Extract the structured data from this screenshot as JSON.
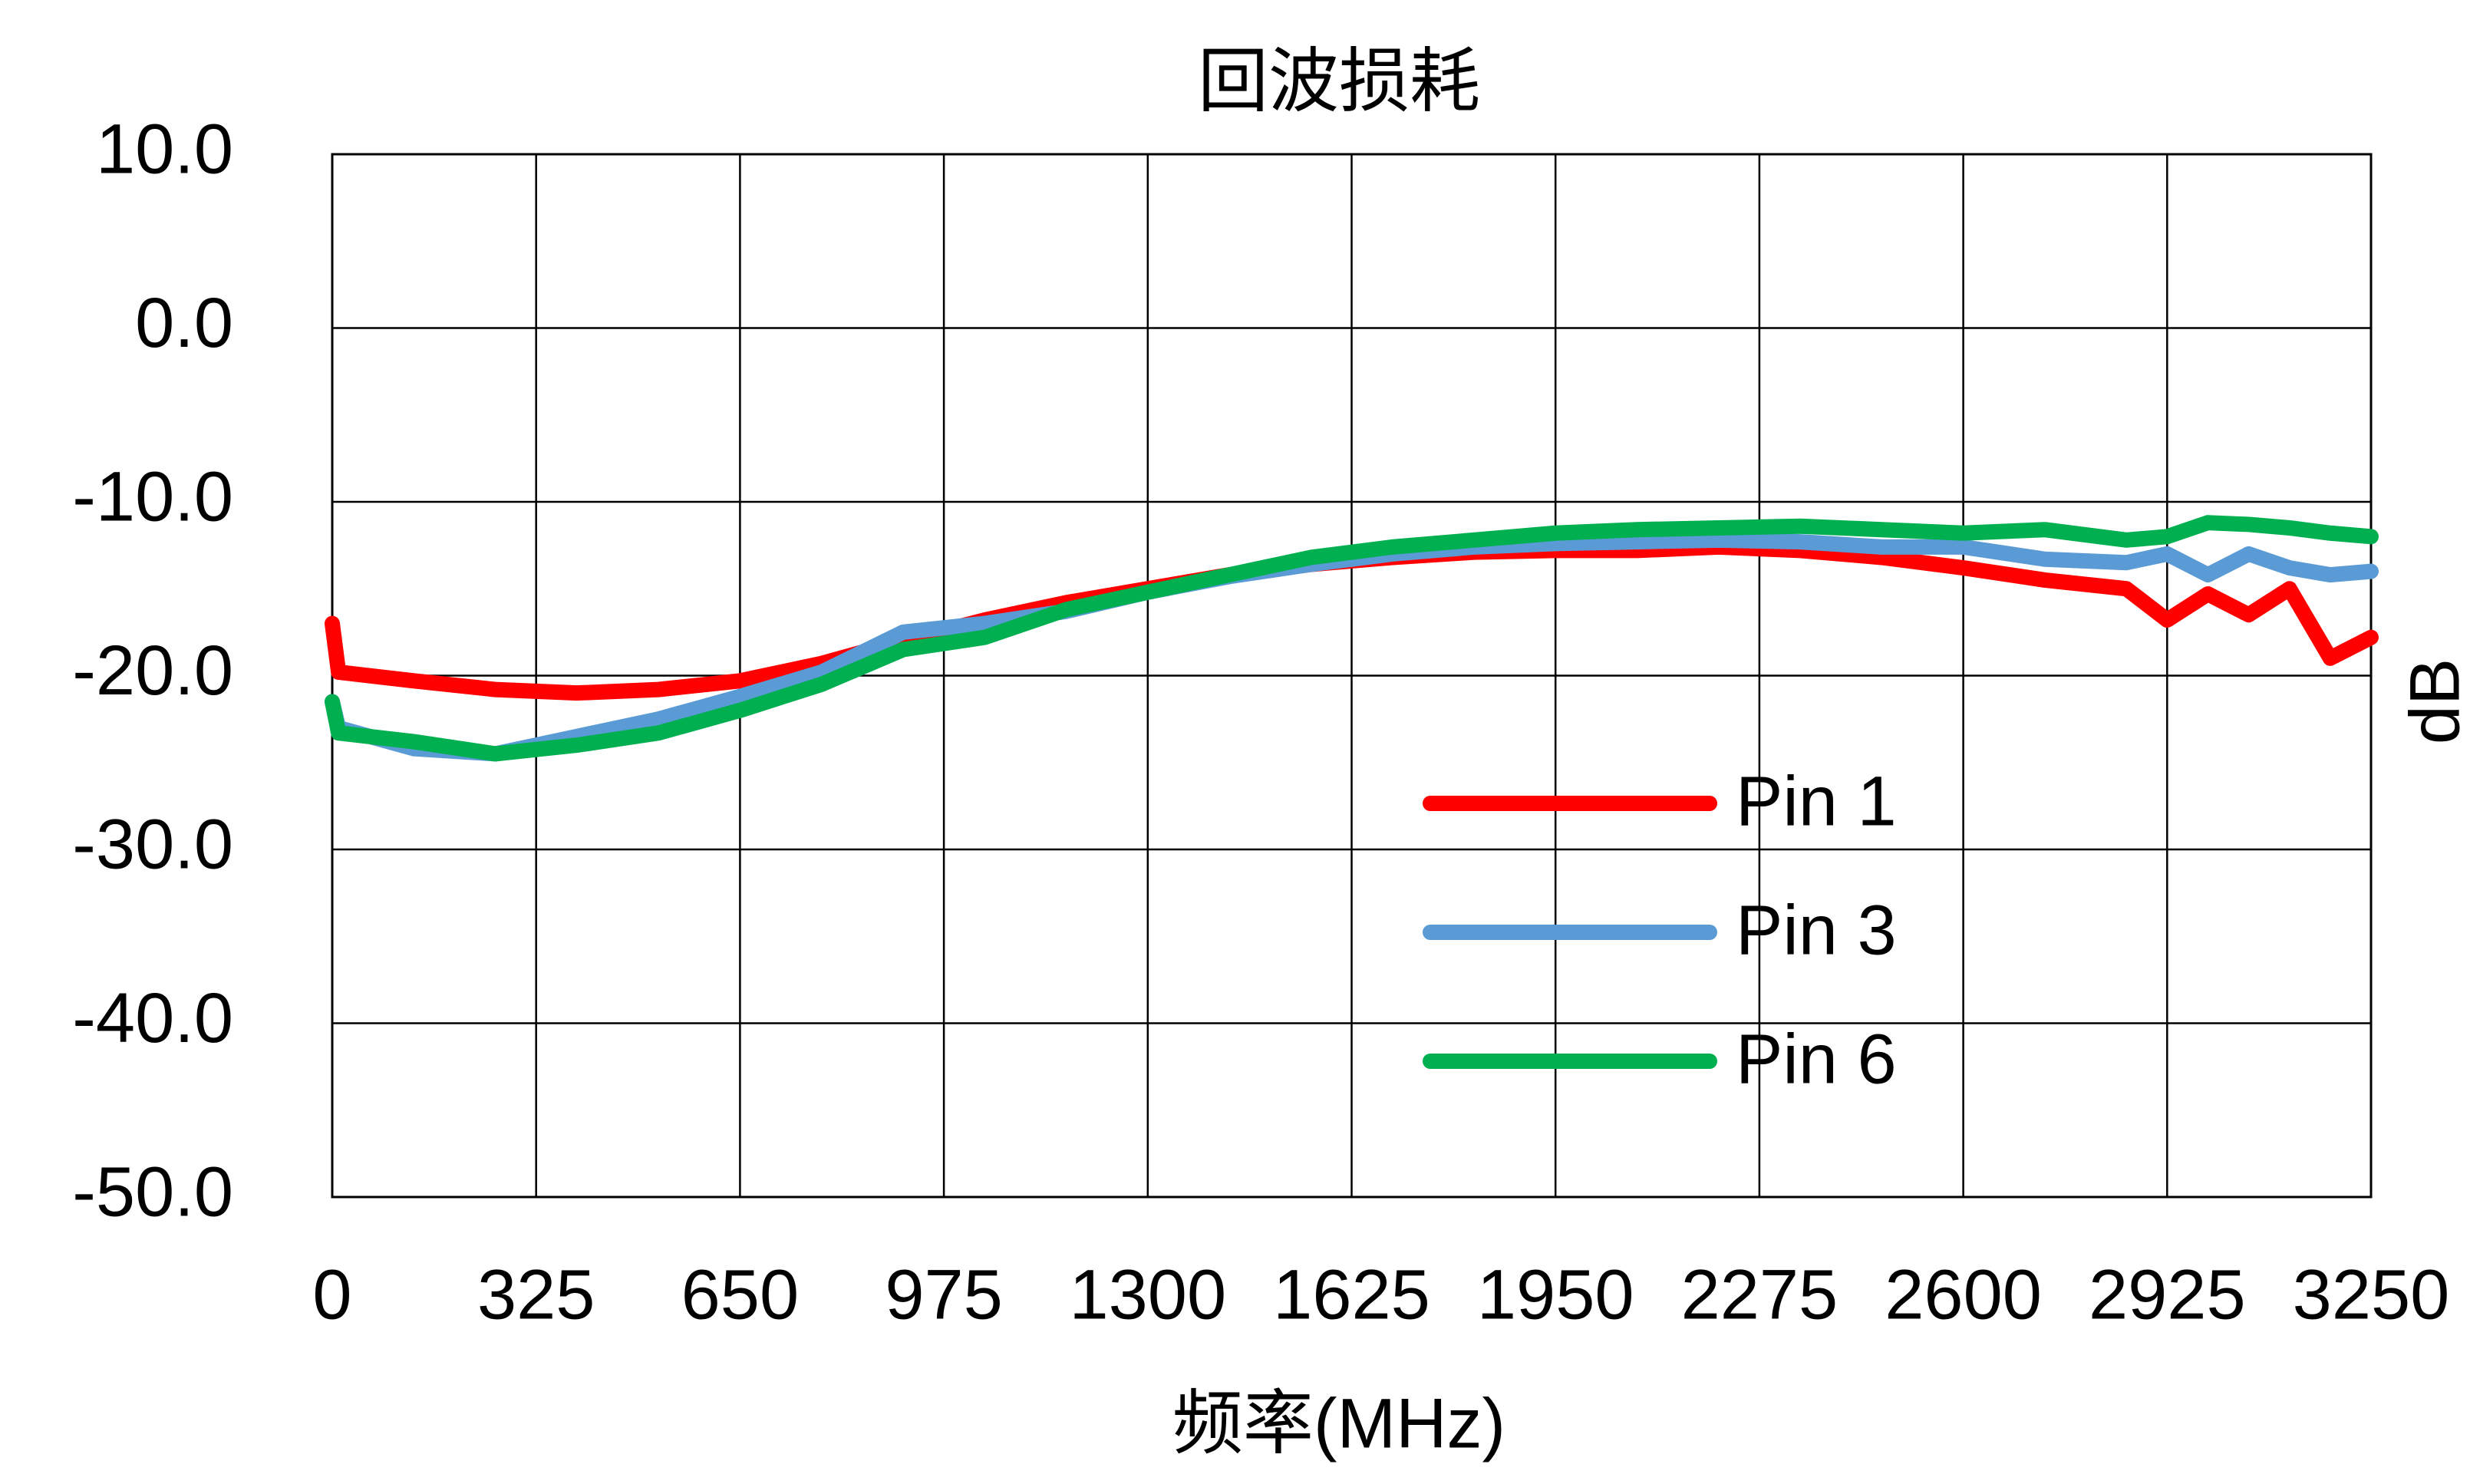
{
  "chart_data": {
    "type": "line",
    "title": "回波损耗",
    "x_label": "频率(MHz)",
    "y_label": "dB",
    "x": [
      0,
      10,
      130,
      260,
      390,
      520,
      650,
      780,
      910,
      1040,
      1170,
      1300,
      1430,
      1560,
      1690,
      1820,
      1950,
      2080,
      2210,
      2340,
      2470,
      2600,
      2730,
      2860,
      2925,
      2990,
      3055,
      3120,
      3185,
      3250
    ],
    "series": [
      {
        "name": "Pin 1",
        "color": "#ff0000",
        "values": [
          -17,
          -19.8,
          -20.3,
          -20.8,
          -21.0,
          -20.8,
          -20.3,
          -19.3,
          -18.0,
          -16.8,
          -15.8,
          -15.0,
          -14.2,
          -13.6,
          -13.2,
          -12.9,
          -12.8,
          -12.8,
          -12.6,
          -12.8,
          -13.2,
          -13.8,
          -14.5,
          -15.0,
          -16.8,
          -15.3,
          -16.5,
          -15.0,
          -19.0,
          -17.8
        ]
      },
      {
        "name": "Pin 3",
        "color": "#5b9bd5",
        "values": [
          -21.5,
          -23.0,
          -24.2,
          -24.5,
          -23.5,
          -22.5,
          -21.2,
          -19.8,
          -17.5,
          -17.0,
          -16.3,
          -15.2,
          -14.3,
          -13.6,
          -13.0,
          -12.6,
          -12.4,
          -12.3,
          -12.2,
          -12.3,
          -12.6,
          -12.6,
          -13.3,
          -13.5,
          -13.0,
          -14.2,
          -13.0,
          -13.8,
          -14.2,
          -14.0
        ]
      },
      {
        "name": "Pin 6",
        "color": "#00b050",
        "values": [
          -21.5,
          -23.3,
          -23.8,
          -24.5,
          -24.0,
          -23.3,
          -22.0,
          -20.5,
          -18.5,
          -17.8,
          -16.2,
          -15.2,
          -14.2,
          -13.2,
          -12.6,
          -12.2,
          -11.8,
          -11.6,
          -11.5,
          -11.4,
          -11.6,
          -11.8,
          -11.6,
          -12.2,
          -12.0,
          -11.2,
          -11.3,
          -11.5,
          -11.8,
          -12.0
        ]
      }
    ],
    "xlim": [
      0,
      3250
    ],
    "xticks": [
      0,
      325,
      650,
      975,
      1300,
      1625,
      1950,
      2275,
      2600,
      2925,
      3250
    ],
    "ylim": [
      -50,
      10
    ],
    "yticks": [
      {
        "value": 10,
        "label": "10.0"
      },
      {
        "value": 0,
        "label": "0.0"
      },
      {
        "value": -10,
        "label": "-10.0"
      },
      {
        "value": -20,
        "label": "-20.0"
      },
      {
        "value": -30,
        "label": "-30.0"
      },
      {
        "value": -40,
        "label": "-40.0"
      },
      {
        "value": -50,
        "label": "-50.0"
      }
    ],
    "grid": true
  }
}
